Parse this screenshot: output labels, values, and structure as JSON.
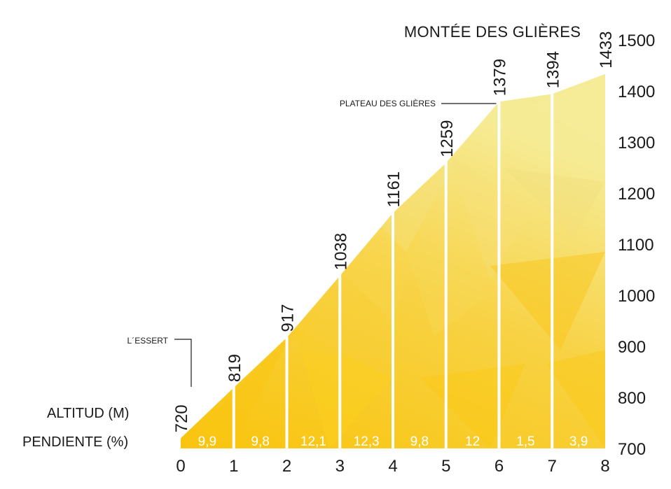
{
  "chart_data": {
    "type": "area",
    "title": "MONTÉE DES GLIÈRES",
    "xlabel": "",
    "ylabel": "",
    "x": [
      0,
      1,
      2,
      3,
      4,
      5,
      6,
      7,
      8
    ],
    "altitudes": [
      720,
      819,
      917,
      1038,
      1161,
      1259,
      1379,
      1394,
      1433
    ],
    "grades": [
      "9,9",
      "9,8",
      "12,1",
      "12,3",
      "9,8",
      "12",
      "1,5",
      "3,9"
    ],
    "xlim": [
      0,
      8
    ],
    "ylim": [
      700,
      1500
    ],
    "y_ticks": [
      700,
      800,
      900,
      1000,
      1100,
      1200,
      1300,
      1400,
      1500
    ],
    "x_ticks": [
      0,
      1,
      2,
      3,
      4,
      5,
      6,
      7,
      8
    ],
    "annotations": [
      {
        "text": "L´ESSERT",
        "x": 0.2,
        "y": 830
      },
      {
        "text": "PLATEAU DES GLIÈRES",
        "x": 6,
        "y": 1379
      }
    ],
    "row_labels": {
      "altitude": "ALTITUD (M)",
      "grade": "PENDIENTE (%)"
    },
    "grid": false,
    "colors": {
      "light": "#f6eb95",
      "mid": "#f7d654",
      "dark": "#f9c40c",
      "divider": "#ffffff"
    }
  }
}
